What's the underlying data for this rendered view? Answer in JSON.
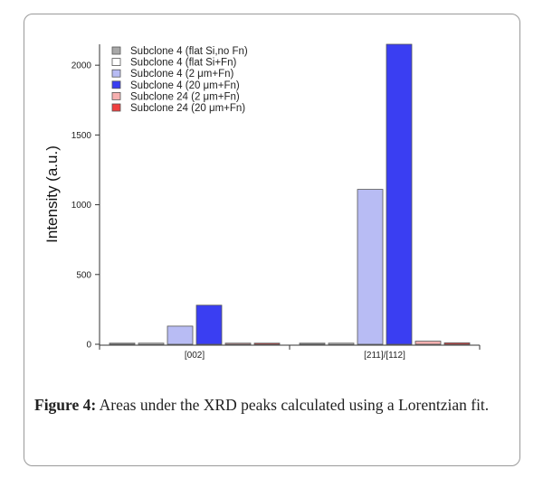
{
  "chart_data": {
    "type": "bar",
    "title": "",
    "xlabel": "",
    "ylabel": "Intensity (a.u.)",
    "ylim": [
      0,
      2150
    ],
    "yticks": [
      0,
      500,
      1000,
      1500,
      2000
    ],
    "categories": [
      "[002]",
      "[211]/[112]"
    ],
    "grid": false,
    "legend_position": "top-left",
    "series": [
      {
        "name": "Subclone 4 (flat Si,no Fn)",
        "color": "#a8a8a8",
        "values": [
          3,
          3
        ]
      },
      {
        "name": "Subclone 4 (flat Si+Fn)",
        "color": "#ffffff",
        "values": [
          4,
          4
        ]
      },
      {
        "name": "Subclone 4 (2 μm+Fn)",
        "color": "#b8bcf4",
        "values": [
          130,
          1110
        ]
      },
      {
        "name": "Subclone 4 (20 μm+Fn)",
        "color": "#3a3ef2",
        "values": [
          280,
          2150
        ]
      },
      {
        "name": "Subclone 24 (2 μm+Fn)",
        "color": "#f6b0b0",
        "values": [
          5,
          22
        ]
      },
      {
        "name": "Subclone 24 (20 μm+Fn)",
        "color": "#f04040",
        "values": [
          5,
          10
        ]
      }
    ]
  },
  "caption": {
    "label": "Figure 4:",
    "text": " Areas under the XRD peaks calculated using a Lorentzian fit."
  }
}
